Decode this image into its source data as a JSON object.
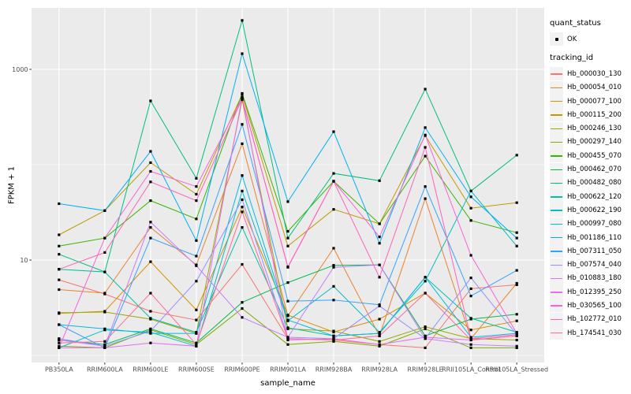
{
  "chart_data": {
    "type": "line",
    "xlabel": "sample_name",
    "ylabel": "FPKM + 1",
    "y_scale": "log10",
    "ylim": [
      0.84,
      4600
    ],
    "y_major_breaks": [
      10,
      1000
    ],
    "y_major_labels": [
      "10",
      "1000"
    ],
    "y_minor_breaks": [
      1,
      100
    ],
    "grid": "on",
    "legend_position": "right",
    "panel_bg": "#EBEBEB",
    "grid_color": "#FFFFFF",
    "tick_color": "#333333",
    "tick_label_color": "#4D4D4D",
    "point_color": "#000000",
    "categories": [
      "PB350LA",
      "RRIM600LA",
      "RRIM600LE",
      "RRIM600SE",
      "RRIM600PE",
      "RRIM901LA",
      "RRIM928BA",
      "RRIM928LA",
      "RRIM928LE",
      "RRII105LA_Control",
      "RRII105LA_Stressed"
    ],
    "series": [
      {
        "name": "Hb_000030_130",
        "color": "#F8766D",
        "values": [
          6.2,
          4.4,
          2.9,
          2.35,
          9.0,
          1.5,
          1.45,
          1.3,
          1.2,
          5.0,
          5.5
        ]
      },
      {
        "name": "Hb_000054_010",
        "color": "#EA8331",
        "values": [
          4.9,
          4.5,
          22,
          8.9,
          166,
          2.6,
          13.3,
          1.6,
          44,
          1.5,
          5.7
        ]
      },
      {
        "name": "Hb_000077_100",
        "color": "#D89000",
        "values": [
          2.75,
          2.9,
          9.6,
          3.0,
          36,
          2.65,
          1.76,
          2.4,
          4.5,
          1.85,
          2.3
        ]
      },
      {
        "name": "Hb_000115_200",
        "color": "#C09B00",
        "values": [
          18.4,
          33,
          105,
          49,
          545,
          14,
          34,
          24,
          202,
          35,
          40
        ]
      },
      {
        "name": "Hb_000246_130",
        "color": "#A3A500",
        "values": [
          2.8,
          2.85,
          2.4,
          1.7,
          480,
          1.9,
          1.8,
          1.4,
          2.0,
          1.5,
          1.45
        ]
      },
      {
        "name": "Hb_000297_140",
        "color": "#7CAE00",
        "values": [
          1.25,
          1.2,
          1.85,
          1.3,
          3.1,
          1.3,
          1.4,
          1.25,
          1.9,
          1.2,
          1.2
        ]
      },
      {
        "name": "Hb_000455_070",
        "color": "#39B600",
        "values": [
          14,
          17,
          42,
          27,
          560,
          20,
          67,
          24,
          123,
          26,
          19.4
        ]
      },
      {
        "name": "Hb_000462_070",
        "color": "#00BB4E",
        "values": [
          1.45,
          1.3,
          1.9,
          1.35,
          3.6,
          5.8,
          8.8,
          8.9,
          1.6,
          2.4,
          2.7
        ]
      },
      {
        "name": "Hb_000482_080",
        "color": "#00BF7D",
        "values": [
          11.5,
          7.5,
          467,
          72,
          3260,
          17,
          81,
          68,
          620,
          53,
          126
        ]
      },
      {
        "name": "Hb_000622_120",
        "color": "#00C1A3",
        "values": [
          8.0,
          7.5,
          2.45,
          1.75,
          22,
          1.95,
          1.6,
          1.7,
          6.6,
          2.45,
          1.75
        ]
      },
      {
        "name": "Hb_000622_190",
        "color": "#00BFC4",
        "values": [
          1.2,
          1.85,
          1.75,
          1.25,
          53,
          2.3,
          5.3,
          1.75,
          6.0,
          53,
          14
        ]
      },
      {
        "name": "Hb_000997_080",
        "color": "#00BAE0",
        "values": [
          2.1,
          1.9,
          1.7,
          1.7,
          77,
          2.35,
          1.6,
          1.7,
          6.6,
          1.55,
          1.7
        ]
      },
      {
        "name": "Hb_001186_110",
        "color": "#00B0F6",
        "values": [
          39,
          33,
          138,
          16,
          1460,
          41,
          222,
          15,
          245,
          46,
          17
        ]
      },
      {
        "name": "Hb_007311_050",
        "color": "#35A2FF",
        "values": [
          2.1,
          1.2,
          17,
          11,
          265,
          3.7,
          3.8,
          3.4,
          59,
          4.2,
          7.8
        ]
      },
      {
        "name": "Hb_007574_040",
        "color": "#9590FF",
        "values": [
          1.5,
          1.25,
          1.8,
          6.0,
          43,
          1.55,
          1.5,
          3.3,
          1.5,
          6.5,
          1.65
        ]
      },
      {
        "name": "Hb_010883_180",
        "color": "#C77CFF",
        "values": [
          1.45,
          1.25,
          25,
          8.7,
          2.5,
          1.55,
          8.4,
          8.9,
          1.5,
          1.3,
          1.25
        ]
      },
      {
        "name": "Hb_012395_250",
        "color": "#E76BF3",
        "values": [
          1.2,
          1.2,
          1.35,
          1.25,
          510,
          1.45,
          1.5,
          1.3,
          1.55,
          1.45,
          1.6
        ]
      },
      {
        "name": "Hb_030565_100",
        "color": "#FA62DB",
        "values": [
          1.2,
          17,
          85,
          59,
          500,
          8.4,
          67,
          17.5,
          205,
          11.2,
          1.7
        ]
      },
      {
        "name": "Hb_102772_010",
        "color": "#FF62BC",
        "values": [
          8.0,
          12,
          66,
          42,
          490,
          8.5,
          67,
          6.6,
          152,
          1.5,
          1.65
        ]
      },
      {
        "name": "Hb_174541_030",
        "color": "#FF6A98",
        "values": [
          1.35,
          1.4,
          4.5,
          1.3,
          32,
          1.5,
          1.45,
          1.6,
          4.5,
          1.45,
          1.6
        ]
      }
    ]
  },
  "legend": {
    "quant_title": "quant_status",
    "quant_items": [
      {
        "label": "OK",
        "marker": "point"
      }
    ],
    "tracking_title": "tracking_id"
  }
}
